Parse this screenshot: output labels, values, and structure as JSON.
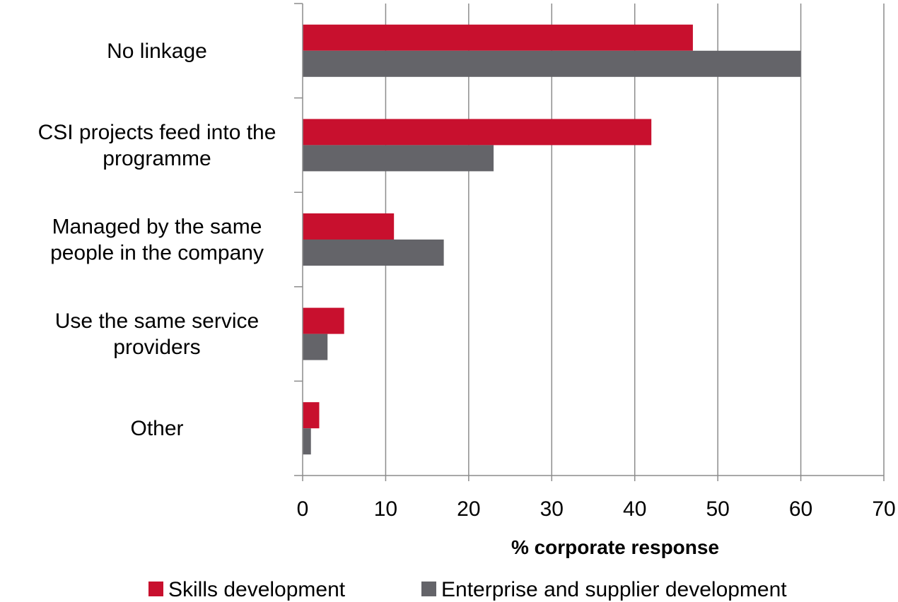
{
  "chart_data": {
    "type": "bar",
    "orientation": "horizontal",
    "categories": [
      [
        "No linkage"
      ],
      [
        "CSI projects feed into the",
        "programme"
      ],
      [
        "Managed by the same",
        "people in the company"
      ],
      [
        "Use the same service",
        "providers"
      ],
      [
        "Other"
      ]
    ],
    "series": [
      {
        "name": "Skills development",
        "color": "#c8102e",
        "values": [
          47,
          42,
          11,
          5,
          2
        ]
      },
      {
        "name": "Enterprise and  supplier development",
        "color": "#646469",
        "values": [
          60,
          23,
          17,
          3,
          1
        ]
      }
    ],
    "xlabel": "% corporate response",
    "xlim": [
      0,
      70
    ],
    "xticks": [
      0,
      10,
      20,
      30,
      40,
      50,
      60,
      70
    ],
    "grid": "vertical",
    "legend_position": "bottom"
  }
}
